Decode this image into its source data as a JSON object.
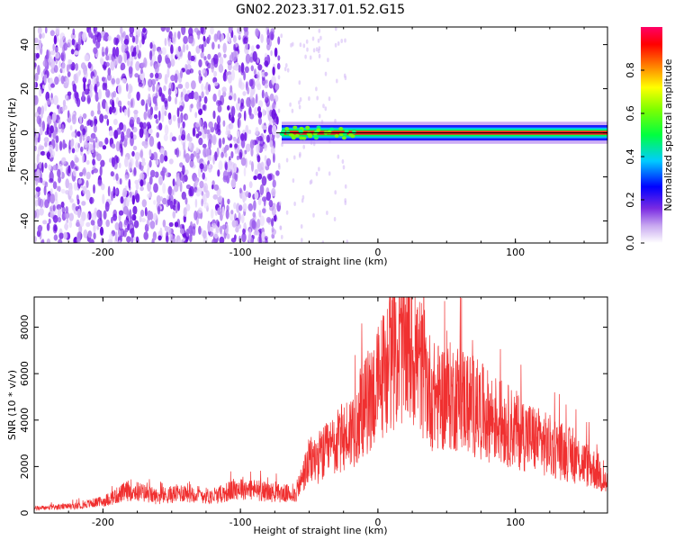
{
  "title": "GN02.2023.317.01.52.G15",
  "chart_data": [
    {
      "type": "heatmap",
      "title": "GN02.2023.317.01.52.G15",
      "xlabel": "Height of straight line (km)",
      "ylabel": "Frequency (Hz)",
      "xlim": [
        -250,
        167
      ],
      "ylim": [
        -50,
        48
      ],
      "x_ticks": [
        -200,
        -100,
        0,
        100
      ],
      "y_ticks": [
        -40,
        -20,
        0,
        20,
        40
      ],
      "colorbar": {
        "label": "Normalized spectral amplitude",
        "range": [
          0,
          1
        ],
        "ticks": [
          0.0,
          0.2,
          0.4,
          0.6,
          0.8
        ],
        "colors": [
          "#ffffff",
          "#8a2be2",
          "#0000ff",
          "#00ffff",
          "#00ff00",
          "#ffff00",
          "#ff8000",
          "#ff0000",
          "#ff0066"
        ]
      },
      "features": {
        "noise_region_x": [
          -250,
          -72
        ],
        "dominant_frequency_hz": 0,
        "signal_region_x": [
          -72,
          167
        ]
      }
    },
    {
      "type": "line",
      "xlabel": "Height of straight line (km)",
      "ylabel": "SNR (10 * v/v)",
      "xlim": [
        -250,
        167
      ],
      "ylim": [
        0,
        9300
      ],
      "x_ticks": [
        -200,
        -100,
        0,
        100
      ],
      "y_ticks": [
        0,
        2000,
        4000,
        6000,
        8000
      ],
      "color": "#f03030",
      "envelope": {
        "x": [
          -250,
          -220,
          -200,
          -180,
          -160,
          -140,
          -120,
          -100,
          -80,
          -60,
          -50,
          -40,
          -20,
          0,
          10,
          20,
          30,
          40,
          60,
          80,
          100,
          120,
          140,
          160,
          167
        ],
        "y": [
          200,
          300,
          500,
          1000,
          700,
          900,
          700,
          1100,
          900,
          800,
          2200,
          2500,
          3500,
          5500,
          6800,
          7200,
          6500,
          5000,
          5000,
          4200,
          3600,
          3000,
          2500,
          1800,
          1200
        ]
      },
      "peak": {
        "x": 27,
        "y": 9300
      }
    }
  ]
}
